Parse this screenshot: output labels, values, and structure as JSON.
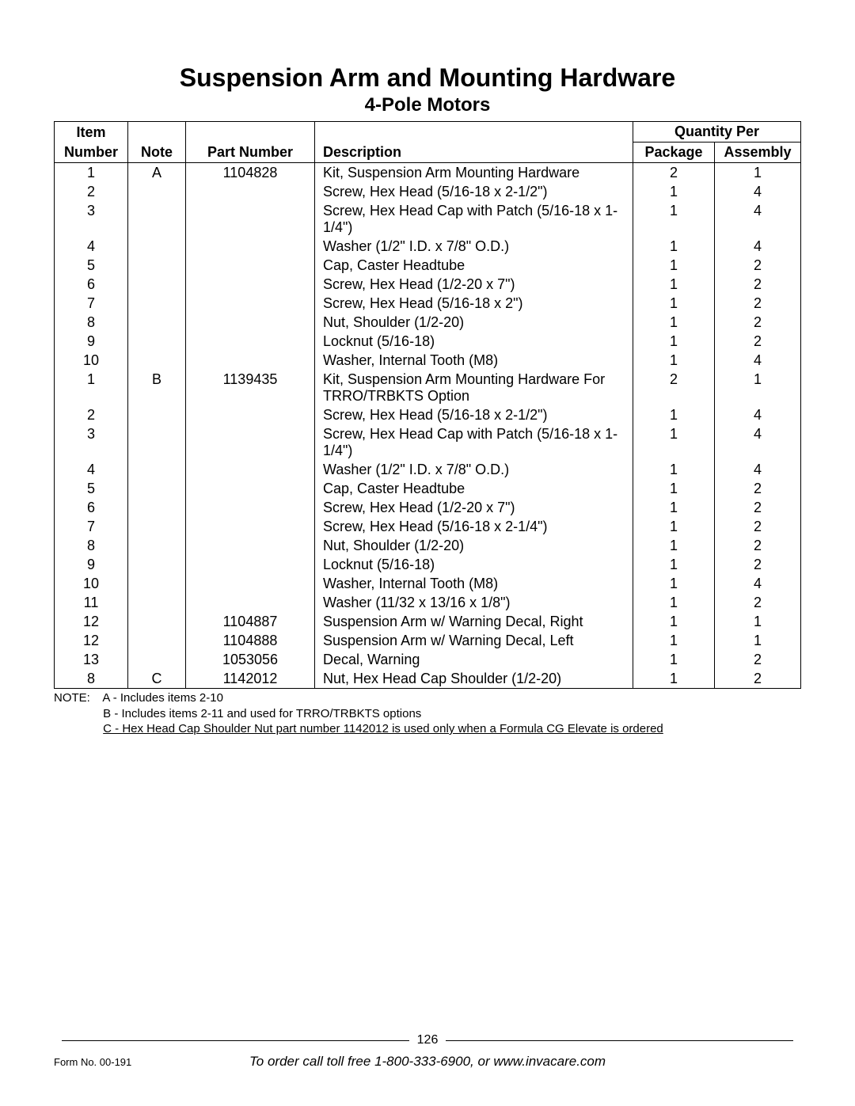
{
  "title": "Suspension Arm and Mounting Hardware",
  "subtitle": "4-Pole Motors",
  "headers": {
    "item_top": "Item",
    "item": "Number",
    "note": "Note",
    "part_number": "Part Number",
    "description": "Description",
    "qty_top": "Quantity Per",
    "package": "Package",
    "assembly": "Assembly"
  },
  "rows": [
    {
      "item": "1",
      "note": "A",
      "pn": "1104828",
      "desc": "Kit, Suspension Arm Mounting Hardware",
      "pkg": "2",
      "asm": "1"
    },
    {
      "item": "2",
      "note": "",
      "pn": "",
      "desc": "Screw, Hex Head (5/16-18 x 2-1/2\")",
      "pkg": "1",
      "asm": "4"
    },
    {
      "item": "3",
      "note": "",
      "pn": "",
      "desc": "Screw, Hex Head Cap with Patch (5/16-18 x 1-1/4\")",
      "pkg": "1",
      "asm": "4"
    },
    {
      "item": "4",
      "note": "",
      "pn": "",
      "desc": "Washer (1/2\" I.D. x 7/8\" O.D.)",
      "pkg": "1",
      "asm": "4"
    },
    {
      "item": "5",
      "note": "",
      "pn": "",
      "desc": "Cap, Caster Headtube",
      "pkg": "1",
      "asm": "2"
    },
    {
      "item": "6",
      "note": "",
      "pn": "",
      "desc": "Screw, Hex Head (1/2-20 x 7\")",
      "pkg": "1",
      "asm": "2"
    },
    {
      "item": "7",
      "note": "",
      "pn": "",
      "desc": "Screw, Hex Head (5/16-18 x 2\")",
      "pkg": "1",
      "asm": "2"
    },
    {
      "item": "8",
      "note": "",
      "pn": "",
      "desc": "Nut, Shoulder (1/2-20)",
      "pkg": "1",
      "asm": "2"
    },
    {
      "item": "9",
      "note": "",
      "pn": "",
      "desc": "Locknut (5/16-18)",
      "pkg": "1",
      "asm": "2"
    },
    {
      "item": "10",
      "note": "",
      "pn": "",
      "desc": "Washer, Internal Tooth (M8)",
      "pkg": "1",
      "asm": "4"
    },
    {
      "item": "1",
      "note": "B",
      "pn": "1139435",
      "desc": "Kit, Suspension Arm Mounting Hardware For TRRO/TRBKTS Option",
      "pkg": "2",
      "asm": "1"
    },
    {
      "item": "2",
      "note": "",
      "pn": "",
      "desc": "Screw, Hex Head (5/16-18 x 2-1/2\")",
      "pkg": "1",
      "asm": "4"
    },
    {
      "item": "3",
      "note": "",
      "pn": "",
      "desc": "Screw, Hex Head Cap with Patch (5/16-18 x 1-1/4\")",
      "pkg": "1",
      "asm": "4"
    },
    {
      "item": "4",
      "note": "",
      "pn": "",
      "desc": "Washer (1/2\" I.D. x 7/8\" O.D.)",
      "pkg": "1",
      "asm": "4"
    },
    {
      "item": "5",
      "note": "",
      "pn": "",
      "desc": "Cap, Caster Headtube",
      "pkg": "1",
      "asm": "2"
    },
    {
      "item": "6",
      "note": "",
      "pn": "",
      "desc": "Screw, Hex Head (1/2-20 x 7\")",
      "pkg": "1",
      "asm": "2"
    },
    {
      "item": "7",
      "note": "",
      "pn": "",
      "desc": "Screw, Hex Head (5/16-18 x 2-1/4\")",
      "pkg": "1",
      "asm": "2"
    },
    {
      "item": "8",
      "note": "",
      "pn": "",
      "desc": "Nut, Shoulder (1/2-20)",
      "pkg": "1",
      "asm": "2"
    },
    {
      "item": "9",
      "note": "",
      "pn": "",
      "desc": "Locknut (5/16-18)",
      "pkg": "1",
      "asm": "2"
    },
    {
      "item": "10",
      "note": "",
      "pn": "",
      "desc": "Washer, Internal Tooth (M8)",
      "pkg": "1",
      "asm": "4"
    },
    {
      "item": "11",
      "note": "",
      "pn": "",
      "desc": "Washer (11/32 x 13/16 x 1/8\")",
      "pkg": "1",
      "asm": "2"
    },
    {
      "item": "12",
      "note": "",
      "pn": "1104887",
      "desc": "Suspension Arm w/ Warning Decal, Right",
      "pkg": "1",
      "asm": "1"
    },
    {
      "item": "12",
      "note": "",
      "pn": "1104888",
      "desc": "Suspension Arm w/ Warning Decal, Left",
      "pkg": "1",
      "asm": "1"
    },
    {
      "item": "13",
      "note": "",
      "pn": "1053056",
      "desc": "Decal, Warning",
      "pkg": "1",
      "asm": "2"
    },
    {
      "item": "8",
      "note": "C",
      "pn": "1142012",
      "desc": "Nut, Hex Head Cap Shoulder (1/2-20)",
      "pkg": "1",
      "asm": "2"
    }
  ],
  "notes": {
    "label": "NOTE:",
    "lines": [
      "A - Includes items 2-10",
      "B - Includes items 2-11 and used for TRRO/TRBKTS options",
      "C - Hex Head Cap Shoulder Nut part number 1142012 is used only when a Formula CG Elevate is ordered"
    ]
  },
  "footer": {
    "page_number": "126",
    "form_no": "Form No. 00-191",
    "order_line": "To order call toll free 1-800-333-6900, or www.invacare.com"
  }
}
